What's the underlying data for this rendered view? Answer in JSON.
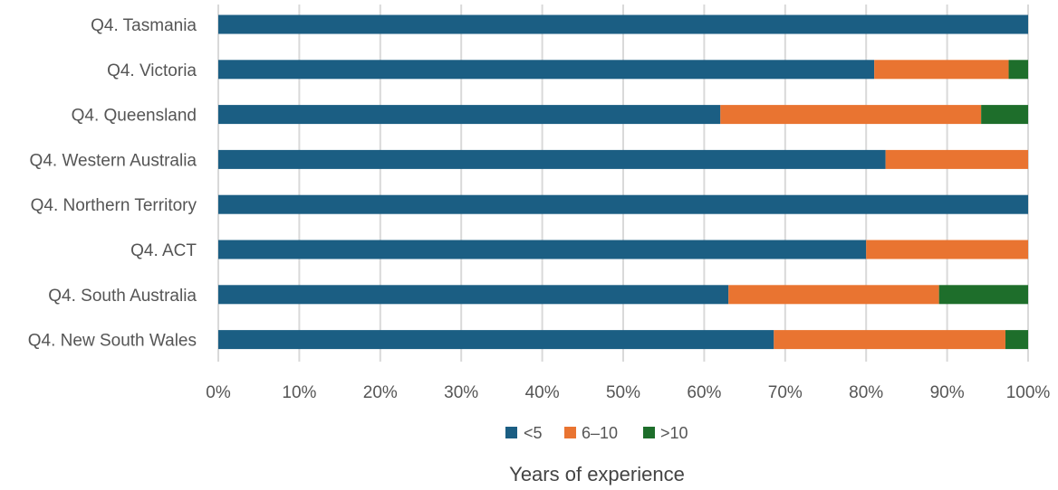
{
  "chart_data": {
    "type": "bar",
    "orientation": "horizontal",
    "stacked": "percent",
    "categories": [
      "Q4. Tasmania",
      "Q4. Victoria",
      "Q4. Queensland",
      "Q4. Western Australia",
      "Q4. Northern Territory",
      "Q4. ACT",
      "Q4. South Australia",
      "Q4. New South Wales"
    ],
    "series": [
      {
        "name": "<5",
        "color": "#1b5e83",
        "values": [
          100,
          81,
          62,
          82.4,
          100,
          80,
          63,
          68.6
        ]
      },
      {
        "name": "6–10",
        "color": "#e97431",
        "values": [
          0,
          16.6,
          32.2,
          17.6,
          0,
          20,
          26,
          28.6
        ]
      },
      {
        "name": ">10",
        "color": "#1e6e2b",
        "values": [
          0,
          2.4,
          5.8,
          0,
          0,
          0,
          11,
          2.8
        ]
      }
    ],
    "title": "",
    "xlabel": "Years of experience",
    "ylabel": "",
    "xlim": [
      0,
      100
    ],
    "xticks": [
      "0%",
      "10%",
      "20%",
      "30%",
      "40%",
      "50%",
      "60%",
      "70%",
      "80%",
      "90%",
      "100%"
    ],
    "grid": "vertical",
    "legend": "bottom"
  }
}
